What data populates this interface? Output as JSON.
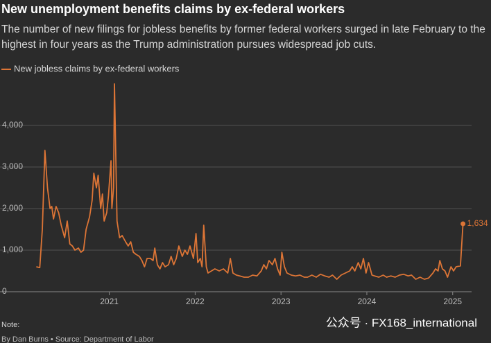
{
  "chart_data": {
    "type": "line",
    "title": "New unemployment benefits claims by ex-federal workers",
    "subtitle": "The number of new filings for jobless benefits by former federal workers surged in late February to the highest in four years as the Trump administration pursues widespread job cuts.",
    "note": "Note:",
    "source": "By Dan Burns • Source: Department of Labor",
    "watermark": "公众号 · FX168_international",
    "xlim": [
      2020.05,
      2025.22
    ],
    "xticks": [
      2021,
      2022,
      2023,
      2024,
      2025
    ],
    "ylim": [
      0,
      5000
    ],
    "yticks": [
      0,
      {
        "value": 1000,
        "label": "1,000"
      },
      {
        "value": 2000,
        "label": "2,000"
      },
      {
        "value": 3000,
        "label": "3,000"
      },
      {
        "value": 4000,
        "label": "4,000"
      }
    ],
    "grid": true,
    "legend": "top-left",
    "x": [
      2020.15,
      2020.19,
      2020.22,
      2020.25,
      2020.28,
      2020.31,
      2020.33,
      2020.35,
      2020.38,
      2020.41,
      2020.44,
      2020.48,
      2020.51,
      2020.54,
      2020.57,
      2020.6,
      2020.64,
      2020.67,
      2020.7,
      2020.73,
      2020.77,
      2020.8,
      2020.82,
      2020.85,
      2020.87,
      2020.9,
      2020.92,
      2020.94,
      2020.97,
      2020.99,
      2021.02,
      2021.03,
      2021.05,
      2021.06,
      2021.09,
      2021.12,
      2021.15,
      2021.19,
      2021.22,
      2021.25,
      2021.28,
      2021.31,
      2021.35,
      2021.38,
      2021.41,
      2021.44,
      2021.48,
      2021.51,
      2021.53,
      2021.56,
      2021.59,
      2021.62,
      2021.65,
      2021.69,
      2021.72,
      2021.75,
      2021.78,
      2021.81,
      2021.85,
      2021.88,
      2021.91,
      2021.94,
      2021.98,
      2022.01,
      2022.03,
      2022.06,
      2022.08,
      2022.1,
      2022.13,
      2022.15,
      2022.19,
      2022.23,
      2022.28,
      2022.33,
      2022.38,
      2022.41,
      2022.44,
      2022.48,
      2022.52,
      2022.57,
      2022.62,
      2022.67,
      2022.72,
      2022.77,
      2022.8,
      2022.83,
      2022.86,
      2022.9,
      2022.93,
      2022.96,
      2022.99,
      2023.01,
      2023.04,
      2023.07,
      2023.12,
      2023.17,
      2023.22,
      2023.27,
      2023.31,
      2023.36,
      2023.41,
      2023.46,
      2023.51,
      2023.56,
      2023.6,
      2023.65,
      2023.7,
      2023.75,
      2023.8,
      2023.83,
      2023.86,
      2023.9,
      2023.93,
      2023.96,
      2023.99,
      2024.02,
      2024.06,
      2024.09,
      2024.14,
      2024.19,
      2024.23,
      2024.28,
      2024.33,
      2024.38,
      2024.43,
      2024.48,
      2024.52,
      2024.57,
      2024.62,
      2024.67,
      2024.72,
      2024.77,
      2024.8,
      2024.83,
      2024.85,
      2024.88,
      2024.91,
      2024.94,
      2024.98,
      2025.01,
      2025.04,
      2025.09,
      2025.12
    ],
    "series": [
      {
        "name": "New jobless claims by ex-federal workers",
        "color": "#dd7536",
        "values": [
          600,
          580,
          1500,
          3400,
          2500,
          2000,
          2050,
          1750,
          2050,
          1900,
          1600,
          1300,
          1700,
          1150,
          1100,
          1000,
          1050,
          950,
          1000,
          1500,
          1800,
          2200,
          2850,
          2500,
          2800,
          2000,
          2350,
          1700,
          1900,
          2300,
          3150,
          2000,
          2500,
          5000,
          1700,
          1300,
          1350,
          1200,
          1100,
          1200,
          950,
          900,
          850,
          750,
          600,
          800,
          800,
          750,
          1050,
          650,
          550,
          700,
          600,
          650,
          850,
          650,
          800,
          1100,
          850,
          1000,
          900,
          1100,
          800,
          1400,
          700,
          800,
          600,
          1600,
          600,
          450,
          500,
          550,
          500,
          550,
          450,
          800,
          450,
          400,
          380,
          350,
          350,
          400,
          380,
          500,
          650,
          550,
          750,
          650,
          800,
          550,
          400,
          950,
          600,
          450,
          400,
          380,
          400,
          350,
          350,
          400,
          350,
          420,
          380,
          350,
          400,
          300,
          400,
          450,
          500,
          600,
          500,
          700,
          550,
          800,
          450,
          700,
          400,
          380,
          350,
          400,
          350,
          380,
          350,
          400,
          420,
          380,
          400,
          300,
          350,
          300,
          330,
          450,
          550,
          500,
          750,
          550,
          500,
          350,
          600,
          500,
          600,
          620,
          1634
        ],
        "value_labels": [
          null,
          null,
          null,
          null,
          null,
          null,
          null,
          null,
          null,
          null,
          null,
          null,
          null,
          null,
          null,
          null,
          null,
          null,
          null,
          null,
          null,
          null,
          null,
          null,
          null,
          null,
          null,
          null,
          null,
          null,
          null,
          null,
          null,
          null,
          null,
          null,
          null,
          null,
          null,
          null,
          null,
          null,
          null,
          null,
          null,
          null,
          null,
          null,
          null,
          null,
          null,
          null,
          null,
          null,
          null,
          null,
          null,
          null,
          null,
          null,
          null,
          null,
          null,
          null,
          null,
          null,
          null,
          null,
          null,
          null,
          null,
          null,
          null,
          null,
          null,
          null,
          null,
          null,
          null,
          null,
          null,
          null,
          null,
          null,
          null,
          null,
          null,
          null,
          null,
          null,
          null,
          null,
          null,
          null,
          null,
          null,
          null,
          null,
          null,
          null,
          null,
          null,
          null,
          null,
          null,
          null,
          null,
          null,
          null,
          null,
          null,
          null,
          null,
          null,
          null,
          null,
          null,
          null,
          null,
          null,
          null,
          null,
          null,
          null,
          null,
          null,
          null,
          null,
          null,
          null,
          null,
          null,
          null,
          null,
          null,
          null,
          null,
          null,
          null,
          null,
          null,
          null,
          "1,634"
        ]
      }
    ]
  }
}
